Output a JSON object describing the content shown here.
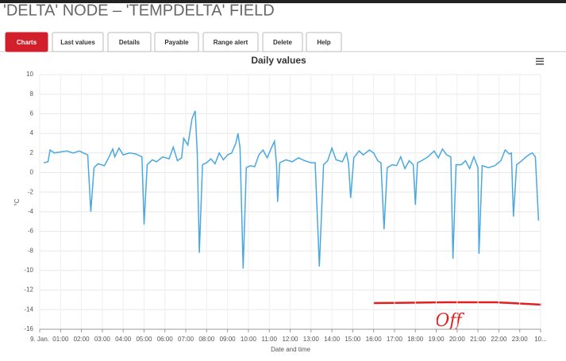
{
  "header": {
    "title": "'DELTA' NODE – 'TEMPDELTA' FIELD"
  },
  "tabs": [
    "Charts",
    "Last values",
    "Details",
    "Payable",
    "Range alert",
    "Delete",
    "Help"
  ],
  "chart_data": {
    "type": "line",
    "title": "Daily values",
    "x_label": "Date and time",
    "y_label": "°C",
    "annotation": "Off",
    "xlim": [
      0,
      24
    ],
    "xticks": [
      {
        "value": 0,
        "label": "9. Jan."
      },
      {
        "value": 1,
        "label": "01:00"
      },
      {
        "value": 2,
        "label": "02:00"
      },
      {
        "value": 3,
        "label": "03:00"
      },
      {
        "value": 4,
        "label": "04:00"
      },
      {
        "value": 5,
        "label": "05:00"
      },
      {
        "value": 6,
        "label": "06:00"
      },
      {
        "value": 7,
        "label": "07:00"
      },
      {
        "value": 8,
        "label": "08:00"
      },
      {
        "value": 9,
        "label": "09:00"
      },
      {
        "value": 10,
        "label": "10:00"
      },
      {
        "value": 11,
        "label": "11:00"
      },
      {
        "value": 12,
        "label": "12:00"
      },
      {
        "value": 13,
        "label": "13:00"
      },
      {
        "value": 14,
        "label": "14:00"
      },
      {
        "value": 15,
        "label": "15:00"
      },
      {
        "value": 16,
        "label": "16:00"
      },
      {
        "value": 17,
        "label": "17:00"
      },
      {
        "value": 18,
        "label": "18:00"
      },
      {
        "value": 19,
        "label": "19:00"
      },
      {
        "value": 20,
        "label": "20:00"
      },
      {
        "value": 21,
        "label": "21:00"
      },
      {
        "value": 22,
        "label": "22:00"
      },
      {
        "value": 23,
        "label": "23:00"
      },
      {
        "value": 24,
        "label": "10..."
      }
    ],
    "ylim": [
      -16,
      10
    ],
    "yticks": [
      -16,
      -14,
      -12,
      -10,
      -8,
      -6,
      -4,
      -2,
      0,
      2,
      4,
      6,
      8,
      10
    ],
    "grid": true,
    "series": [
      {
        "color": "#4aa8e0",
        "x": [
          0.2,
          0.4,
          0.5,
          0.7,
          1.0,
          1.3,
          1.6,
          1.9,
          2.1,
          2.3,
          2.45,
          2.6,
          2.8,
          3.1,
          3.3,
          3.5,
          3.6,
          3.8,
          4.0,
          4.3,
          4.6,
          4.9,
          5.0,
          5.15,
          5.4,
          5.6,
          5.9,
          6.2,
          6.4,
          6.6,
          6.8,
          6.9,
          7.1,
          7.3,
          7.45,
          7.55,
          7.65,
          7.8,
          8.0,
          8.2,
          8.4,
          8.6,
          8.8,
          9.0,
          9.2,
          9.4,
          9.5,
          9.6,
          9.75,
          9.9,
          10.1,
          10.3,
          10.5,
          10.7,
          10.9,
          11.1,
          11.25,
          11.35,
          11.4,
          11.5,
          11.8,
          12.1,
          12.4,
          12.7,
          13.0,
          13.2,
          13.4,
          13.6,
          13.8,
          14.0,
          14.2,
          14.5,
          14.7,
          14.8,
          14.9,
          15.05,
          15.3,
          15.5,
          15.8,
          16.0,
          16.2,
          16.35,
          16.5,
          16.65,
          16.9,
          17.1,
          17.3,
          17.5,
          17.7,
          17.9,
          18.0,
          18.1,
          18.3,
          18.6,
          18.9,
          19.1,
          19.3,
          19.5,
          19.7,
          19.8,
          19.95,
          20.2,
          20.4,
          20.6,
          20.8,
          21.0,
          21.05,
          21.2,
          21.5,
          21.8,
          22.1,
          22.3,
          22.5,
          22.6,
          22.7,
          22.85,
          23.1,
          23.3,
          23.5,
          23.6,
          23.75,
          23.9
        ],
        "values": [
          1.0,
          1.1,
          2.3,
          2.0,
          2.1,
          2.2,
          2.0,
          2.2,
          2.0,
          1.8,
          -4.0,
          0.5,
          0.9,
          0.7,
          1.5,
          2.4,
          1.6,
          2.5,
          1.8,
          2.0,
          1.9,
          1.6,
          -5.3,
          0.8,
          1.3,
          1.1,
          1.6,
          1.4,
          2.6,
          1.2,
          1.5,
          3.5,
          2.8,
          5.5,
          6.3,
          2.0,
          -8.2,
          0.8,
          1.0,
          1.4,
          0.9,
          2.0,
          1.3,
          1.8,
          2.0,
          3.0,
          4.0,
          2.5,
          -9.8,
          0.5,
          0.7,
          0.6,
          1.8,
          2.3,
          1.5,
          2.5,
          3.2,
          0.8,
          -3.0,
          1.0,
          1.3,
          1.1,
          1.5,
          1.2,
          1.0,
          1.0,
          -9.6,
          0.8,
          1.2,
          2.5,
          1.3,
          1.1,
          2.0,
          0.9,
          -2.6,
          1.5,
          2.2,
          1.8,
          2.3,
          2.0,
          1.2,
          1.0,
          -5.8,
          0.5,
          0.8,
          0.7,
          1.6,
          0.4,
          1.2,
          0.8,
          -3.3,
          1.0,
          1.2,
          1.6,
          2.2,
          1.5,
          2.4,
          1.8,
          1.6,
          -8.8,
          0.8,
          0.8,
          1.2,
          0.4,
          1.6,
          0.5,
          -8.3,
          0.7,
          0.5,
          0.7,
          1.2,
          2.3,
          1.9,
          2.0,
          -4.5,
          0.8,
          1.2,
          1.6,
          1.9,
          2.0,
          1.6,
          -4.9
        ]
      }
    ]
  }
}
